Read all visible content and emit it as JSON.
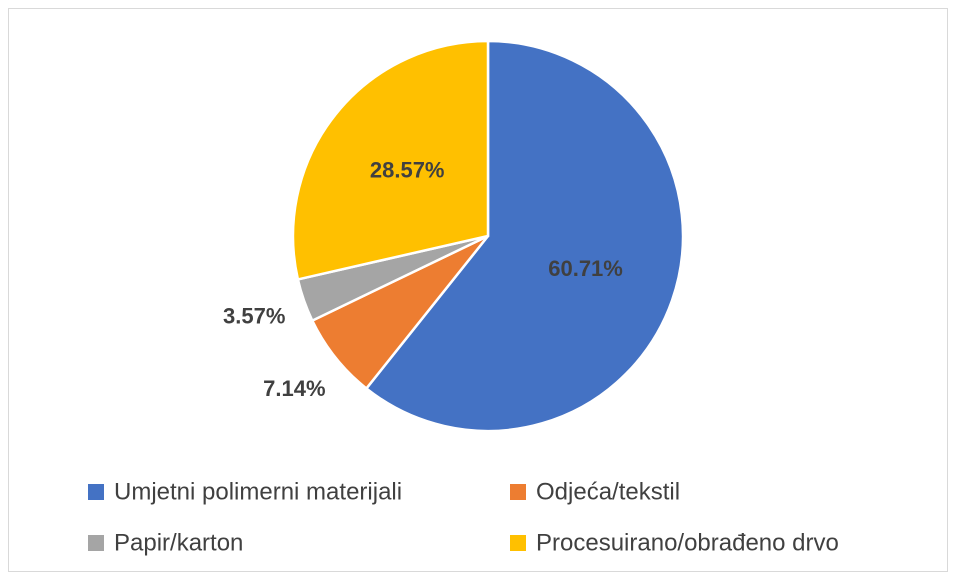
{
  "chart_data": {
    "type": "pie",
    "categories": [
      "Umjetni polimerni materijali",
      "Odjeća/tekstil",
      "Papir/karton",
      "Procesuirano/obrađeno drvo"
    ],
    "values": [
      60.71,
      7.14,
      3.57,
      28.57
    ],
    "value_labels": [
      "60.71%",
      "7.14%",
      "3.57%",
      "28.57%"
    ],
    "colors": [
      "#4472c4",
      "#ed7d31",
      "#a5a5a5",
      "#ffc000"
    ],
    "legend": "bottom"
  }
}
